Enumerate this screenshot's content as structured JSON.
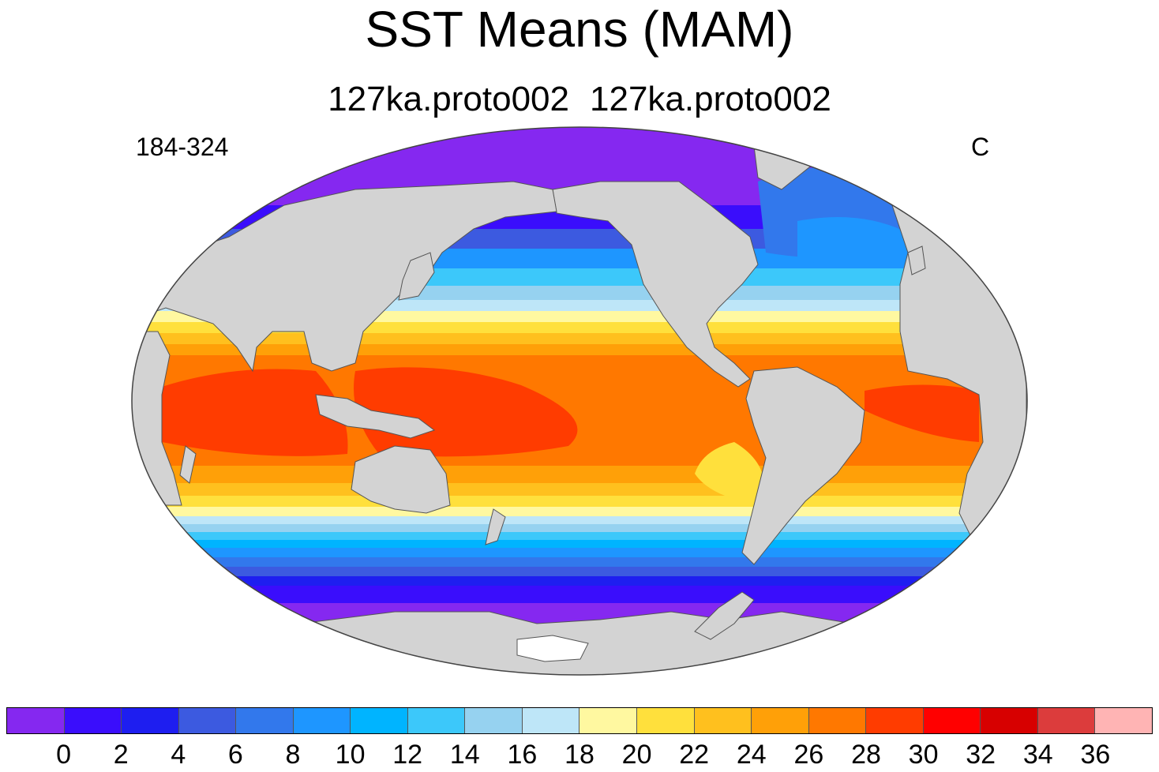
{
  "title": "SST Means (MAM)",
  "subtitle": {
    "left": "127ka.proto002",
    "right": "127ka.proto002"
  },
  "corner_left": "184-324",
  "units": "C",
  "colors": {
    "land": "#d3d3d3",
    "ice": "#ffffff"
  },
  "colorbar": {
    "colors": [
      "#8528f0",
      "#3a0dfc",
      "#1e1ef0",
      "#3c5ae0",
      "#3278ec",
      "#1e96ff",
      "#00b4ff",
      "#3cc8fa",
      "#96d2f0",
      "#bee6f8",
      "#fff8a0",
      "#ffe03c",
      "#ffc01e",
      "#ffa008",
      "#ff7800",
      "#ff3c00",
      "#ff0000",
      "#d70000",
      "#dc3c3c",
      "#ffb4b4"
    ],
    "labels": [
      "0",
      "2",
      "4",
      "6",
      "8",
      "10",
      "12",
      "14",
      "16",
      "18",
      "20",
      "22",
      "24",
      "26",
      "28",
      "30",
      "32",
      "34",
      "36"
    ]
  }
}
